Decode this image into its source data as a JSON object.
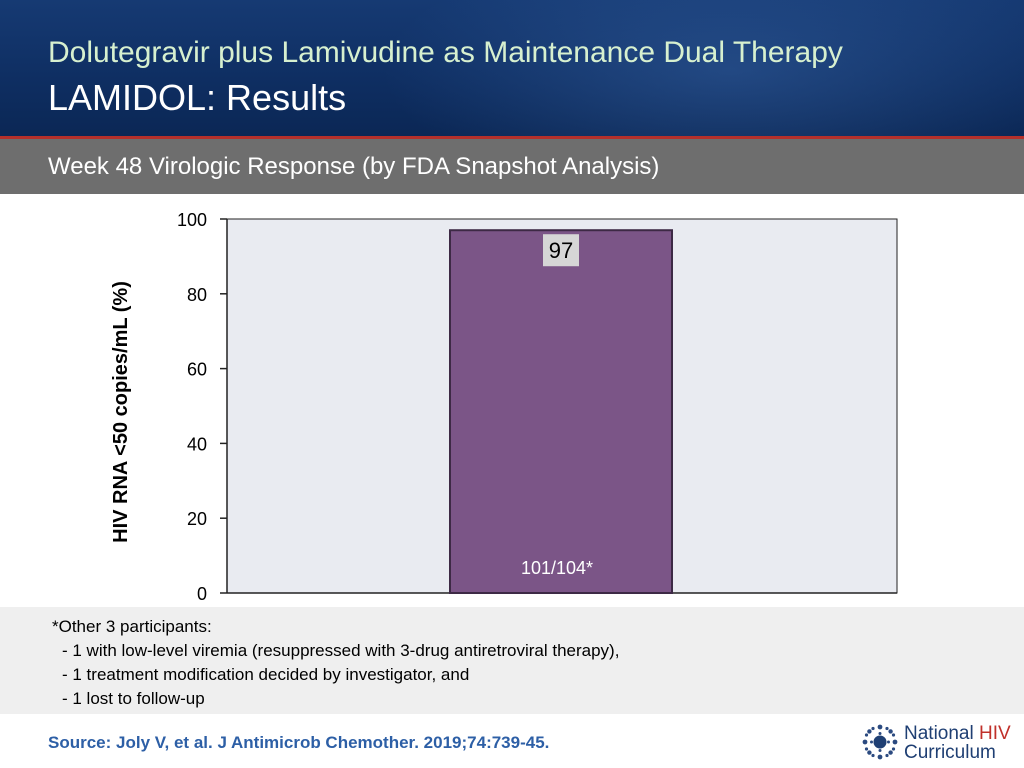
{
  "header": {
    "title_line1": "Dolutegravir plus Lamivudine as Maintenance Dual Therapy",
    "title_line2": "LAMIDOL: Results"
  },
  "subtitle": "Week 48 Virologic Response (by FDA Snapshot Analysis)",
  "chart_data": {
    "type": "bar",
    "categories": [
      ""
    ],
    "values": [
      97
    ],
    "data_labels": [
      "97"
    ],
    "bar_annotations": [
      "101/104*"
    ],
    "ylabel": "HIV RNA <50 copies/mL (%)",
    "xlabel": "",
    "ylim": [
      0,
      100
    ],
    "yticks": [
      0,
      20,
      40,
      60,
      80,
      100
    ],
    "grid": false,
    "colors": {
      "bar": "#7b5587",
      "bar_outline": "#3d2945",
      "plot_bg": "#e9ebf1",
      "label_bg": "#d6d6d6"
    }
  },
  "footnote": {
    "line1": "*Other 3 participants:",
    "line2": "- 1 with low-level viremia (resuppressed with 3-drug antiretroviral therapy),",
    "line3": "- 1 treatment modification decided by investigator, and",
    "line4": "- 1 lost to follow-up"
  },
  "source": "Source: Joly V, et al. J Antimicrob Chemother.  2019;74:739-45.",
  "logo": {
    "word1": "National",
    "word2": "HIV",
    "word3": "Curriculum",
    "icon": "sunburst-logo-icon"
  }
}
